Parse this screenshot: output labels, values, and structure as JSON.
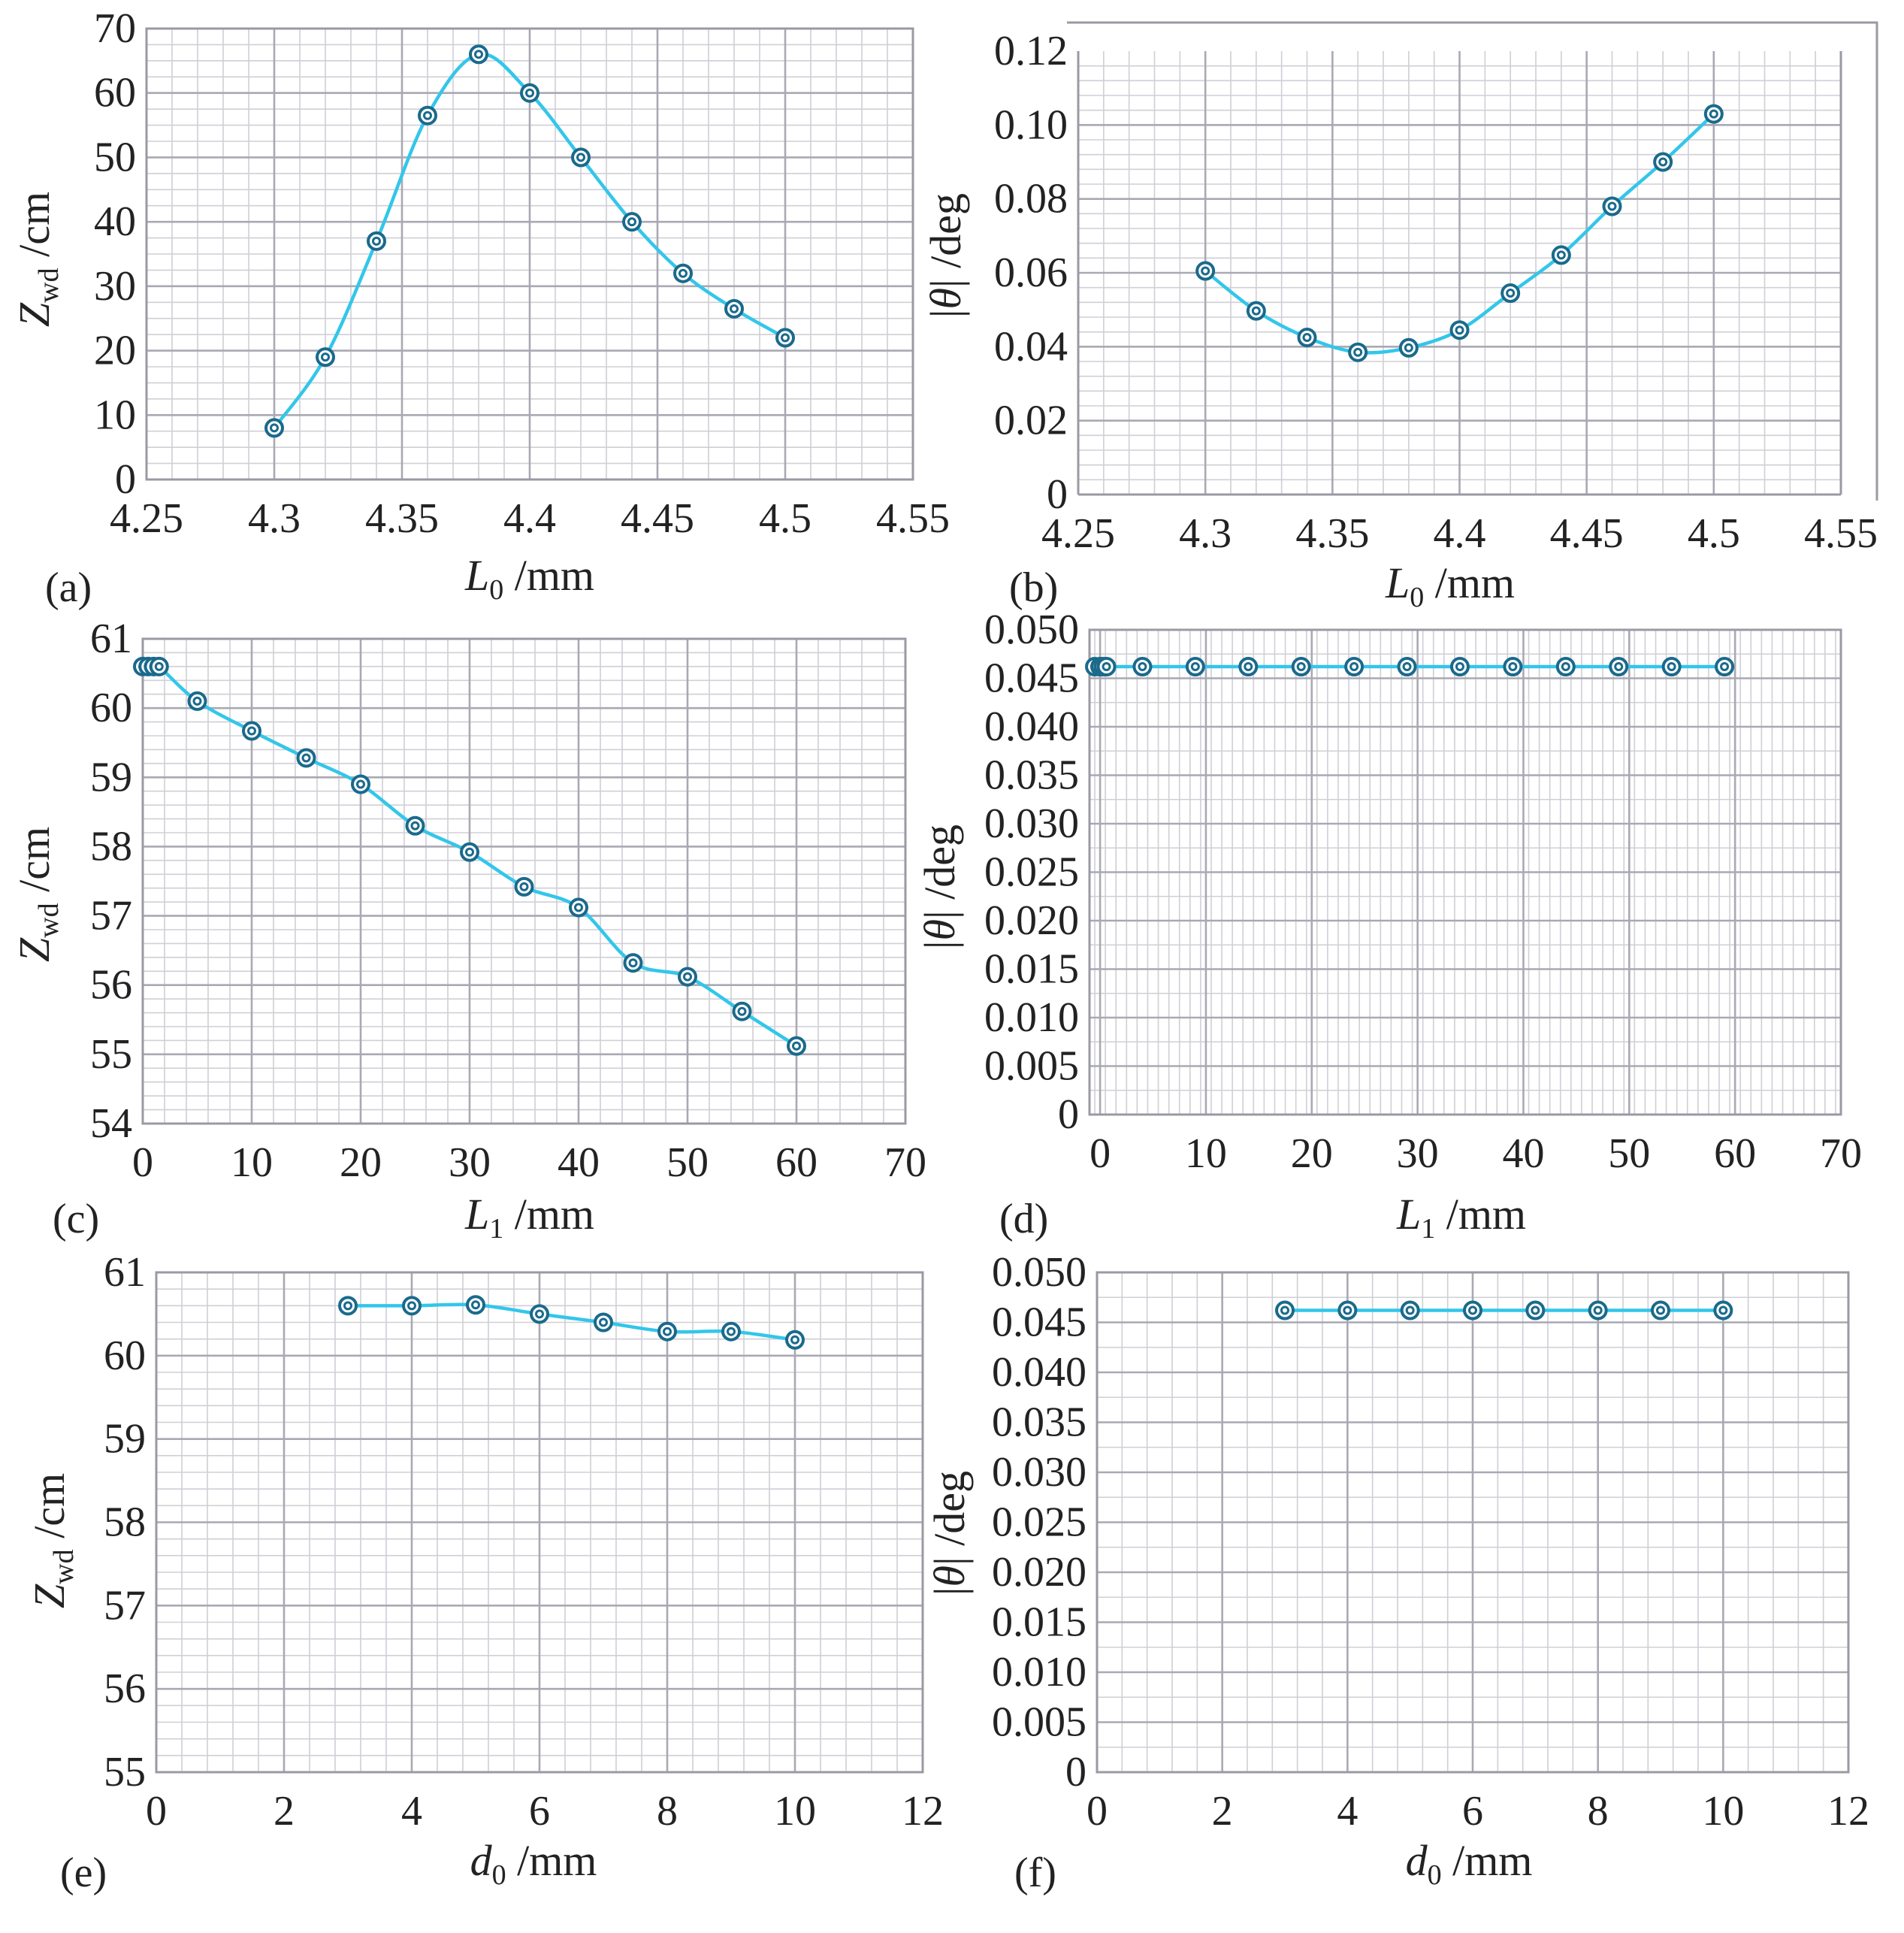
{
  "chart_data": [
    {
      "id": "a",
      "type": "line",
      "panel_label": "(a)",
      "xlabel": {
        "sym": "L",
        "sub": "0",
        "unit": " /mm"
      },
      "ylabel": {
        "sym": "Z",
        "sub": "wd",
        "unit": " /cm"
      },
      "xlim": [
        4.25,
        4.55
      ],
      "ylim": [
        0,
        70
      ],
      "xticks": [
        "4.25",
        "4.3",
        "4.35",
        "4.4",
        "4.45",
        "4.5",
        "4.55"
      ],
      "yticks": [
        "0",
        "10",
        "20",
        "30",
        "40",
        "50",
        "60",
        "70"
      ],
      "x": [
        4.3,
        4.32,
        4.34,
        4.36,
        4.38,
        4.4,
        4.42,
        4.44,
        4.46,
        4.48,
        4.5
      ],
      "y": [
        8,
        19,
        37,
        56.5,
        66,
        60,
        50,
        40,
        32,
        26.5,
        22
      ]
    },
    {
      "id": "b",
      "type": "line",
      "panel_label": "(b)",
      "xlabel": {
        "sym": "L",
        "sub": "0",
        "unit": " /mm"
      },
      "ylabel": {
        "sym": "|θ|",
        "sub": "",
        "unit": " /deg"
      },
      "xlim": [
        4.25,
        4.55
      ],
      "ylim": [
        0,
        0.12
      ],
      "xticks": [
        "4.25",
        "4.3",
        "4.35",
        "4.4",
        "4.45",
        "4.5",
        "4.55"
      ],
      "yticks": [
        "0",
        "0.02",
        "0.04",
        "0.06",
        "0.08",
        "0.10",
        "0.12"
      ],
      "x": [
        4.3,
        4.32,
        4.34,
        4.36,
        4.38,
        4.4,
        4.42,
        4.44,
        4.46,
        4.48,
        4.5
      ],
      "y": [
        0.0605,
        0.0497,
        0.0425,
        0.0385,
        0.0397,
        0.0445,
        0.0545,
        0.0648,
        0.078,
        0.09,
        0.103
      ]
    },
    {
      "id": "c",
      "type": "line",
      "panel_label": "(c)",
      "xlabel": {
        "sym": "L",
        "sub": "1",
        "unit": " /mm"
      },
      "ylabel": {
        "sym": "Z",
        "sub": "wd",
        "unit": " /cm"
      },
      "xlim": [
        0,
        70
      ],
      "ylim": [
        54,
        61
      ],
      "xticks": [
        "0",
        "10",
        "20",
        "30",
        "40",
        "50",
        "60",
        "70"
      ],
      "yticks": [
        "54",
        "55",
        "56",
        "57",
        "58",
        "59",
        "60",
        "61"
      ],
      "x": [
        0,
        0.5,
        1,
        1.5,
        5,
        10,
        15,
        20,
        25,
        30,
        35,
        40,
        45,
        50,
        55,
        60
      ],
      "y": [
        60.6,
        60.6,
        60.6,
        60.6,
        60.1,
        59.67,
        59.28,
        58.9,
        58.3,
        57.92,
        57.42,
        57.12,
        56.32,
        56.12,
        55.62,
        55.12
      ]
    },
    {
      "id": "d",
      "type": "line",
      "panel_label": "(d)",
      "xlabel": {
        "sym": "L",
        "sub": "1",
        "unit": " /mm"
      },
      "ylabel": {
        "sym": "|θ|",
        "sub": "",
        "unit": " /deg"
      },
      "xlim": [
        -1,
        70
      ],
      "ylim": [
        0,
        0.05
      ],
      "xticks": [
        "0",
        "10",
        "20",
        "30",
        "40",
        "50",
        "60",
        "70"
      ],
      "yticks": [
        "0",
        "0.005",
        "0.010",
        "0.015",
        "0.020",
        "0.025",
        "0.030",
        "0.035",
        "0.040",
        "0.045",
        "0.050"
      ],
      "x": [
        -0.5,
        0,
        0.3,
        0.6,
        4,
        9,
        14,
        19,
        24,
        29,
        34,
        39,
        44,
        49,
        54,
        59
      ],
      "y": [
        0.0462,
        0.0462,
        0.0462,
        0.0462,
        0.0462,
        0.0462,
        0.0462,
        0.0462,
        0.0462,
        0.0462,
        0.0462,
        0.0462,
        0.0462,
        0.0462,
        0.0462,
        0.0462
      ]
    },
    {
      "id": "e",
      "type": "line",
      "panel_label": "(e)",
      "xlabel": {
        "sym": "d",
        "sub": "0",
        "unit": " /mm"
      },
      "ylabel": {
        "sym": "Z",
        "sub": "wd",
        "unit": " /cm"
      },
      "xlim": [
        0,
        12
      ],
      "ylim": [
        55,
        61
      ],
      "xticks": [
        "0",
        "2",
        "4",
        "6",
        "8",
        "10",
        "12"
      ],
      "yticks": [
        "55",
        "56",
        "57",
        "58",
        "59",
        "60",
        "61"
      ],
      "x": [
        3,
        4,
        5,
        6,
        7,
        8,
        9,
        10
      ],
      "y": [
        60.6,
        60.6,
        60.61,
        60.5,
        60.4,
        60.29,
        60.29,
        60.19
      ]
    },
    {
      "id": "f",
      "type": "line",
      "panel_label": "(f)",
      "xlabel": {
        "sym": "d",
        "sub": "0",
        "unit": " /mm"
      },
      "ylabel": {
        "sym": "|θ|",
        "sub": "",
        "unit": " /deg"
      },
      "xlim": [
        0,
        12
      ],
      "ylim": [
        0,
        0.05
      ],
      "xticks": [
        "0",
        "2",
        "4",
        "6",
        "8",
        "10",
        "12"
      ],
      "yticks": [
        "0",
        "0.005",
        "0.010",
        "0.015",
        "0.020",
        "0.025",
        "0.030",
        "0.035",
        "0.040",
        "0.045",
        "0.050"
      ],
      "x": [
        3,
        4,
        5,
        6,
        7,
        8,
        9,
        10
      ],
      "y": [
        0.0462,
        0.0462,
        0.0462,
        0.0462,
        0.0462,
        0.0462,
        0.0462,
        0.0462
      ]
    }
  ]
}
